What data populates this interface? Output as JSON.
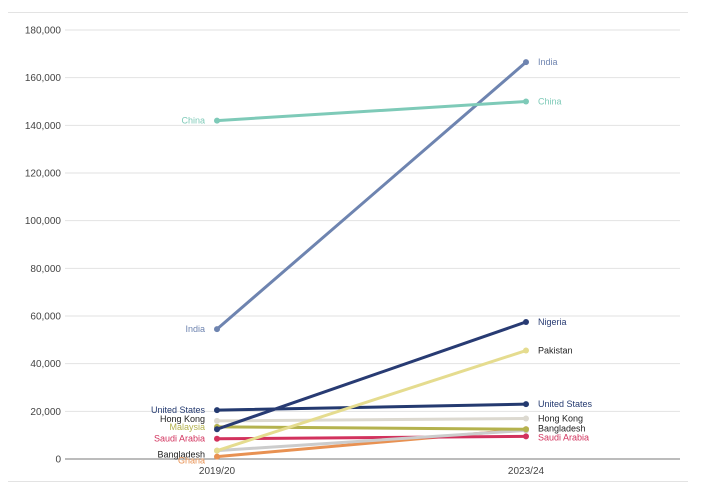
{
  "chart_data": {
    "type": "line",
    "x": [
      "2019/20",
      "2023/24"
    ],
    "ylim": [
      0,
      180000
    ],
    "yticks": [
      0,
      20000,
      40000,
      60000,
      80000,
      100000,
      120000,
      140000,
      160000,
      180000
    ],
    "ytick_labels": [
      "0",
      "20,000",
      "40,000",
      "60,000",
      "80,000",
      "100,000",
      "120,000",
      "140,000",
      "160,000",
      "180,000"
    ],
    "grid": true,
    "legend": "none",
    "series": [
      {
        "name": "China",
        "values": [
          142000,
          150000
        ],
        "color": "#7ecab8",
        "show_start_label": true,
        "show_end_label": true
      },
      {
        "name": "India",
        "values": [
          54500,
          166500
        ],
        "color": "#6e84b0",
        "show_start_label": true,
        "show_end_label": true
      },
      {
        "name": "Nigeria",
        "values": [
          12500,
          57500
        ],
        "color": "#283b73",
        "show_start_label": false,
        "show_end_label": true
      },
      {
        "name": "Pakistan",
        "values": [
          3500,
          45500
        ],
        "color": "#e5dc8f",
        "show_start_label": false,
        "show_end_label": true
      },
      {
        "name": "United States",
        "values": [
          20500,
          23000
        ],
        "color": "#243a70",
        "show_start_label": true,
        "show_end_label": true
      },
      {
        "name": "Hong Kong",
        "values": [
          16000,
          17000
        ],
        "color": "#dcd9d0",
        "show_start_label": true,
        "show_end_label": true
      },
      {
        "name": "Malaysia",
        "values": [
          13500,
          12500
        ],
        "color": "#b4b24e",
        "show_start_label": true,
        "show_end_label": false
      },
      {
        "name": "Bangladesh",
        "values": [
          3500,
          12000
        ],
        "color": "#cccccc",
        "show_start_label": true,
        "show_end_label": true
      },
      {
        "name": "Saudi Arabia",
        "values": [
          8500,
          9500
        ],
        "color": "#d2325d",
        "show_start_label": true,
        "show_end_label": true
      },
      {
        "name": "Ghana",
        "values": [
          1000,
          12500
        ],
        "color": "#e89152",
        "show_start_label": true,
        "show_end_label": false
      }
    ]
  }
}
